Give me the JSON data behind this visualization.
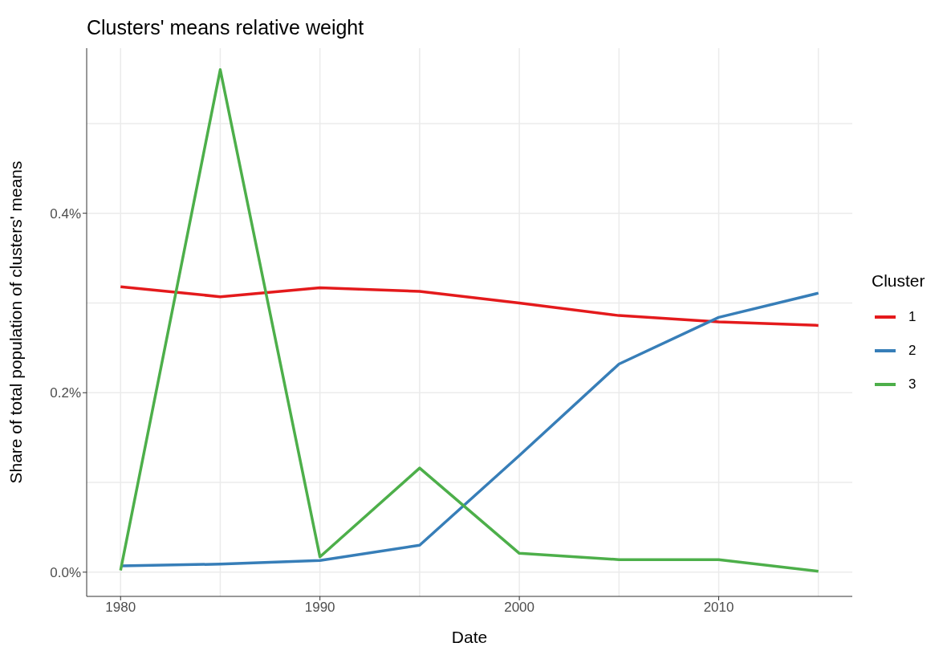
{
  "chart_data": {
    "type": "line",
    "title": "Clusters' means relative weight",
    "xlabel": "Date",
    "ylabel": "Share of total population of clusters' means",
    "legend_title": "Cluster",
    "x": [
      1980,
      1985,
      1990,
      1995,
      2000,
      2005,
      2010,
      2015
    ],
    "series": [
      {
        "name": "1",
        "color": "#e41a1c",
        "values": [
          0.318,
          0.307,
          0.317,
          0.313,
          0.3,
          0.286,
          0.279,
          0.275
        ]
      },
      {
        "name": "2",
        "color": "#377eb8",
        "values": [
          0.007,
          0.009,
          0.013,
          0.03,
          0.13,
          0.232,
          0.284,
          0.311
        ]
      },
      {
        "name": "3",
        "color": "#4daf4a",
        "values": [
          0.002,
          0.56,
          0.017,
          0.116,
          0.021,
          0.014,
          0.014,
          0.001
        ]
      }
    ],
    "xlim": [
      1978.3,
      2016.7
    ],
    "xticks": [
      1980,
      1990,
      2000,
      2010
    ],
    "ylim": [
      -0.027,
      0.584
    ],
    "yticks": [
      {
        "value": 0,
        "label": "0.0%"
      },
      {
        "value": 0.2,
        "label": "0.2%"
      },
      {
        "value": 0.4,
        "label": "0.4%"
      }
    ],
    "grid": true,
    "legend": "right",
    "marker": "none",
    "line_style": "solid"
  }
}
